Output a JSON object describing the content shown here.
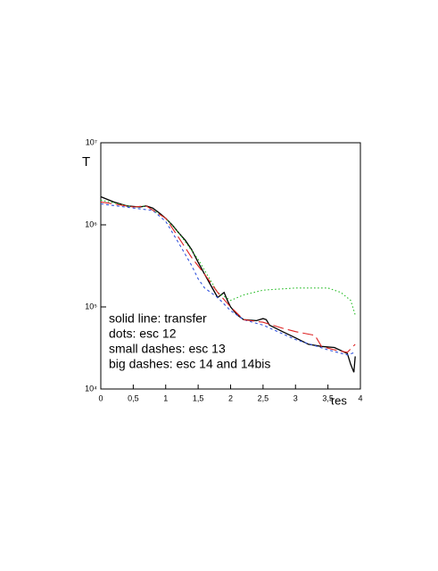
{
  "chart_data": {
    "type": "line",
    "y_label": "T",
    "x_label": "τes",
    "log_y": true,
    "xlim": [
      0,
      4
    ],
    "ylim": [
      10000,
      10000000
    ],
    "xticks": [
      0,
      {
        "value": 0.5,
        "label": "0,5"
      },
      1,
      {
        "value": 1.5,
        "label": "1,5"
      },
      2,
      {
        "value": 2.5,
        "label": "2,5"
      },
      3,
      {
        "value": 3.5,
        "label": "3,5"
      },
      4
    ],
    "yticks": [
      {
        "value": 10000,
        "label": "10⁴"
      },
      {
        "value": 100000,
        "label": "10⁵"
      },
      {
        "value": 1000000,
        "label": "10⁶"
      },
      {
        "value": 10000000,
        "label": "10⁷"
      }
    ],
    "annotations": [
      "solid line: transfer",
      "dots: esc 12",
      "small dashes: esc 13",
      "big dashes: esc 14 and 14bis"
    ],
    "series": [
      {
        "color": "#000000",
        "dash": "solid",
        "x": [
          0,
          0.2,
          0.4,
          0.6,
          0.7,
          0.8,
          0.9,
          1.0,
          1.1,
          1.2,
          1.3,
          1.4,
          1.5,
          1.6,
          1.7,
          1.8,
          1.85,
          1.9,
          1.95,
          2.0,
          2.1,
          2.2,
          2.4,
          2.5,
          2.55,
          2.6,
          2.8,
          3.0,
          3.2,
          3.4,
          3.6,
          3.8,
          3.85,
          3.9,
          3.92
        ],
        "values": [
          2200000,
          1900000,
          1700000,
          1650000,
          1700000,
          1600000,
          1400000,
          1200000,
          1000000,
          800000,
          650000,
          500000,
          350000,
          250000,
          180000,
          130000,
          140000,
          150000,
          120000,
          100000,
          80000,
          70000,
          68000,
          72000,
          70000,
          60000,
          50000,
          42000,
          35000,
          33000,
          32000,
          27000,
          20000,
          16000,
          25000
        ]
      },
      {
        "color": "#22bb22",
        "dash": "dots",
        "x": [
          0,
          0.5,
          0.7,
          1.0,
          1.2,
          1.5,
          1.8,
          2.0,
          2.2,
          2.5,
          3.0,
          3.5,
          3.7,
          3.85,
          3.92
        ],
        "values": [
          2000000,
          1650000,
          1700000,
          1200000,
          800000,
          380000,
          150000,
          120000,
          140000,
          160000,
          170000,
          170000,
          150000,
          120000,
          80000
        ]
      },
      {
        "color": "#3355dd",
        "dash": "small",
        "x": [
          0,
          0.5,
          0.8,
          1.0,
          1.2,
          1.4,
          1.5,
          1.6,
          1.8,
          2.0,
          2.2,
          2.5,
          3.0,
          3.5,
          3.8,
          3.92
        ],
        "values": [
          1800000,
          1600000,
          1500000,
          1100000,
          600000,
          320000,
          220000,
          170000,
          130000,
          90000,
          70000,
          60000,
          40000,
          30000,
          26000,
          28000
        ]
      },
      {
        "color": "#dd2222",
        "dash": "big",
        "x": [
          0,
          0.5,
          0.7,
          1.0,
          1.2,
          1.4,
          1.6,
          1.8,
          2.0,
          2.2,
          2.5,
          2.8,
          3.0,
          3.3,
          3.4,
          3.6,
          3.8,
          3.92
        ],
        "values": [
          1900000,
          1650000,
          1700000,
          1200000,
          700000,
          400000,
          250000,
          150000,
          100000,
          70000,
          65000,
          55000,
          50000,
          45000,
          33000,
          30000,
          28000,
          35000
        ]
      }
    ]
  }
}
